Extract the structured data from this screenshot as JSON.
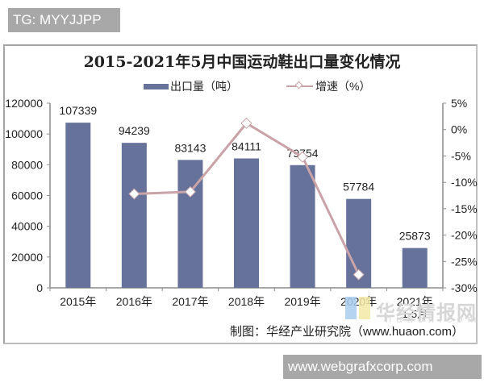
{
  "watermark_top": "TG: MYYJJPP",
  "watermark_bottom": "www.webgrafxcorp.com",
  "site_watermark": {
    "cn": "华经情报网",
    "en": "huaon.com"
  },
  "footer": "制图：华经产业研究院（www.huaon.com）",
  "colors": {
    "bar": "#67729a",
    "line": "#c9a3a8",
    "axis": "#8c8c8c"
  },
  "chart_data": {
    "type": "bar+line",
    "title": "2015-2021年5月中国运动鞋出口量变化情况",
    "categories": [
      "2015年",
      "2016年",
      "2017年",
      "2018年",
      "2019年",
      "2020年",
      "2021年 1-5月"
    ],
    "series": [
      {
        "name": "出口量（吨）",
        "type": "bar",
        "axis": "left",
        "values": [
          107339,
          94239,
          83143,
          84111,
          79754,
          57784,
          25873
        ]
      },
      {
        "name": "增速（%）",
        "type": "line",
        "axis": "right",
        "marker": "diamond",
        "values": [
          null,
          -12.2,
          -11.8,
          1.2,
          -5.2,
          -27.5,
          null
        ]
      }
    ],
    "left_axis": {
      "ylim": [
        0,
        120000
      ],
      "ticks": [
        "0",
        "20000",
        "40000",
        "60000",
        "80000",
        "100000",
        "120000"
      ]
    },
    "right_axis": {
      "ylim": [
        -30,
        5
      ],
      "ticks": [
        "-30%",
        "-25%",
        "-20%",
        "-15%",
        "-10%",
        "-5%",
        "0%",
        "5%"
      ]
    },
    "legend_position": "top",
    "grid": false
  }
}
